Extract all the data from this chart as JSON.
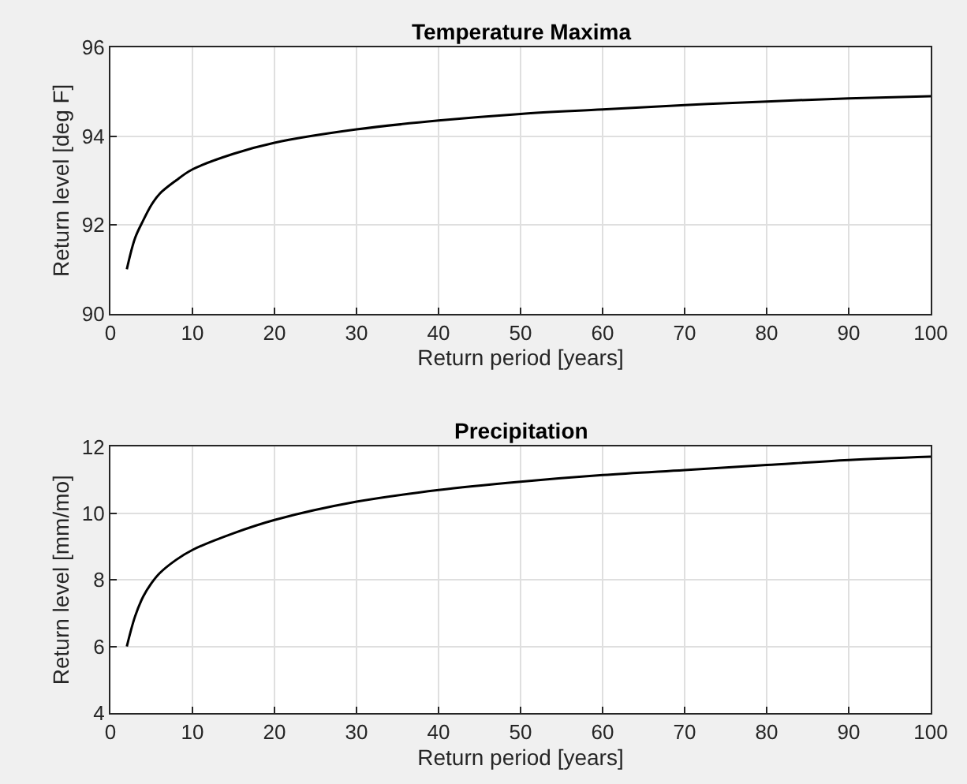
{
  "chart_data": [
    {
      "type": "line",
      "title": "Temperature Maxima",
      "xlabel": "Return period [years]",
      "ylabel": "Return level [deg F]",
      "x": [
        2,
        3,
        4,
        5,
        6,
        8,
        10,
        15,
        20,
        30,
        40,
        50,
        60,
        70,
        80,
        90,
        100
      ],
      "series": [
        {
          "color": "#000000",
          "values": [
            91.0,
            91.7,
            92.1,
            92.45,
            92.7,
            93.0,
            93.25,
            93.6,
            93.85,
            94.15,
            94.35,
            94.5,
            94.6,
            94.7,
            94.78,
            94.85,
            94.9
          ]
        }
      ],
      "xlim": [
        0,
        100
      ],
      "xticks": [
        0,
        10,
        20,
        30,
        40,
        50,
        60,
        70,
        80,
        90,
        100
      ],
      "ylim": [
        90,
        96
      ],
      "yticks": [
        90,
        92,
        94,
        96
      ],
      "grid": true,
      "legend": false,
      "marker": "none",
      "line_style": "solid"
    },
    {
      "type": "line",
      "title": "Precipitation",
      "xlabel": "Return period [years]",
      "ylabel": "Return level [mm/mo]",
      "x": [
        2,
        3,
        4,
        5,
        6,
        8,
        10,
        15,
        20,
        30,
        40,
        50,
        60,
        70,
        80,
        90,
        100
      ],
      "series": [
        {
          "color": "#000000",
          "values": [
            6.0,
            6.9,
            7.5,
            7.9,
            8.2,
            8.6,
            8.9,
            9.4,
            9.8,
            10.35,
            10.7,
            10.95,
            11.15,
            11.3,
            11.45,
            11.6,
            11.7
          ]
        }
      ],
      "xlim": [
        0,
        100
      ],
      "xticks": [
        0,
        10,
        20,
        30,
        40,
        50,
        60,
        70,
        80,
        90,
        100
      ],
      "ylim": [
        4,
        12
      ],
      "yticks": [
        4,
        6,
        8,
        10,
        12
      ],
      "grid": true,
      "legend": false,
      "marker": "none",
      "line_style": "solid"
    }
  ]
}
